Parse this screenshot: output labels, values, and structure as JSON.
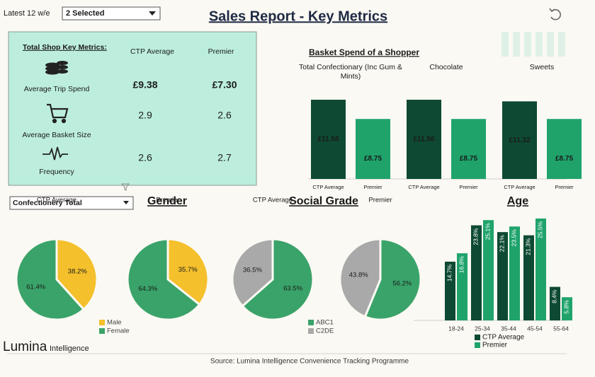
{
  "header": {
    "period_label": "Latest 12 w/e",
    "selector": "2 Selected",
    "title": "Sales Report - Key Metrics"
  },
  "key_metrics": {
    "title": "Total Shop Key Metrics:",
    "columns": [
      "CTP Average",
      "Premier"
    ],
    "rows": [
      {
        "label": "Average Trip Spend",
        "values": [
          "£9.38",
          "£7.30"
        ]
      },
      {
        "label": "Average Basket Size",
        "values": [
          "2.9",
          "2.6"
        ]
      },
      {
        "label": "Frequency",
        "values": [
          "2.6",
          "2.7"
        ]
      }
    ]
  },
  "filter": "Confectionery Total",
  "chart_data": [
    {
      "type": "bar",
      "title": "Basket Spend of a Shopper",
      "categories": [
        "Total Confectionary (Inc Gum & Mints)",
        "Chocolate",
        "Sweets"
      ],
      "series": [
        {
          "name": "CTP Average",
          "color": "#0e4a33",
          "values": [
            11.56,
            11.56,
            11.32
          ],
          "value_labels": [
            "£11.56",
            "£11.56",
            "£11.32"
          ]
        },
        {
          "name": "Premier",
          "color": "#1fa36b",
          "values": [
            8.75,
            8.75,
            8.75
          ],
          "value_labels": [
            "£8.75",
            "£8.75",
            "£8.75"
          ]
        }
      ]
    },
    {
      "type": "pie",
      "title": "Gender",
      "categories": [
        "Male",
        "Female"
      ],
      "colors": [
        "#f4c02c",
        "#3aa36a"
      ],
      "series": [
        {
          "name": "CTP Average",
          "values": [
            38.2,
            61.4
          ],
          "value_labels": [
            "38.2%",
            "61.4%"
          ]
        },
        {
          "name": "Premier",
          "values": [
            35.7,
            64.3
          ],
          "value_labels": [
            "35.7%",
            "64.3%"
          ]
        }
      ]
    },
    {
      "type": "pie",
      "title": "Social Grade",
      "categories": [
        "ABC1",
        "C2DE"
      ],
      "colors": [
        "#3aa36a",
        "#a9a9a9"
      ],
      "series": [
        {
          "name": "CTP Average",
          "values": [
            63.5,
            36.5
          ],
          "value_labels": [
            "63.5%",
            "36.5%"
          ]
        },
        {
          "name": "Premier",
          "values": [
            56.2,
            43.8
          ],
          "value_labels": [
            "56.2%",
            "43.8%"
          ]
        }
      ]
    },
    {
      "type": "bar",
      "title": "Age",
      "categories": [
        "18-24",
        "25-34",
        "35-44",
        "45-54",
        "55-64"
      ],
      "series": [
        {
          "name": "CTP Average",
          "color": "#0e4a33",
          "values": [
            14.7,
            23.8,
            22.1,
            21.3,
            8.4
          ],
          "value_labels": [
            "14.7%",
            "23.8%",
            "22.1%",
            "21.3%",
            "8.4%"
          ]
        },
        {
          "name": "Premier",
          "color": "#1fa36b",
          "values": [
            16.8,
            25.1,
            23.5,
            25.5,
            5.8
          ],
          "value_labels": [
            "16.8%",
            "25.1%",
            "23.5%",
            "25.5%",
            "5.8%"
          ]
        }
      ]
    }
  ],
  "footer": {
    "logo": "Lumina",
    "logo_suffix": "Intelligence",
    "source": "Source: Lumina Intelligence Convenience Tracking Programme"
  }
}
